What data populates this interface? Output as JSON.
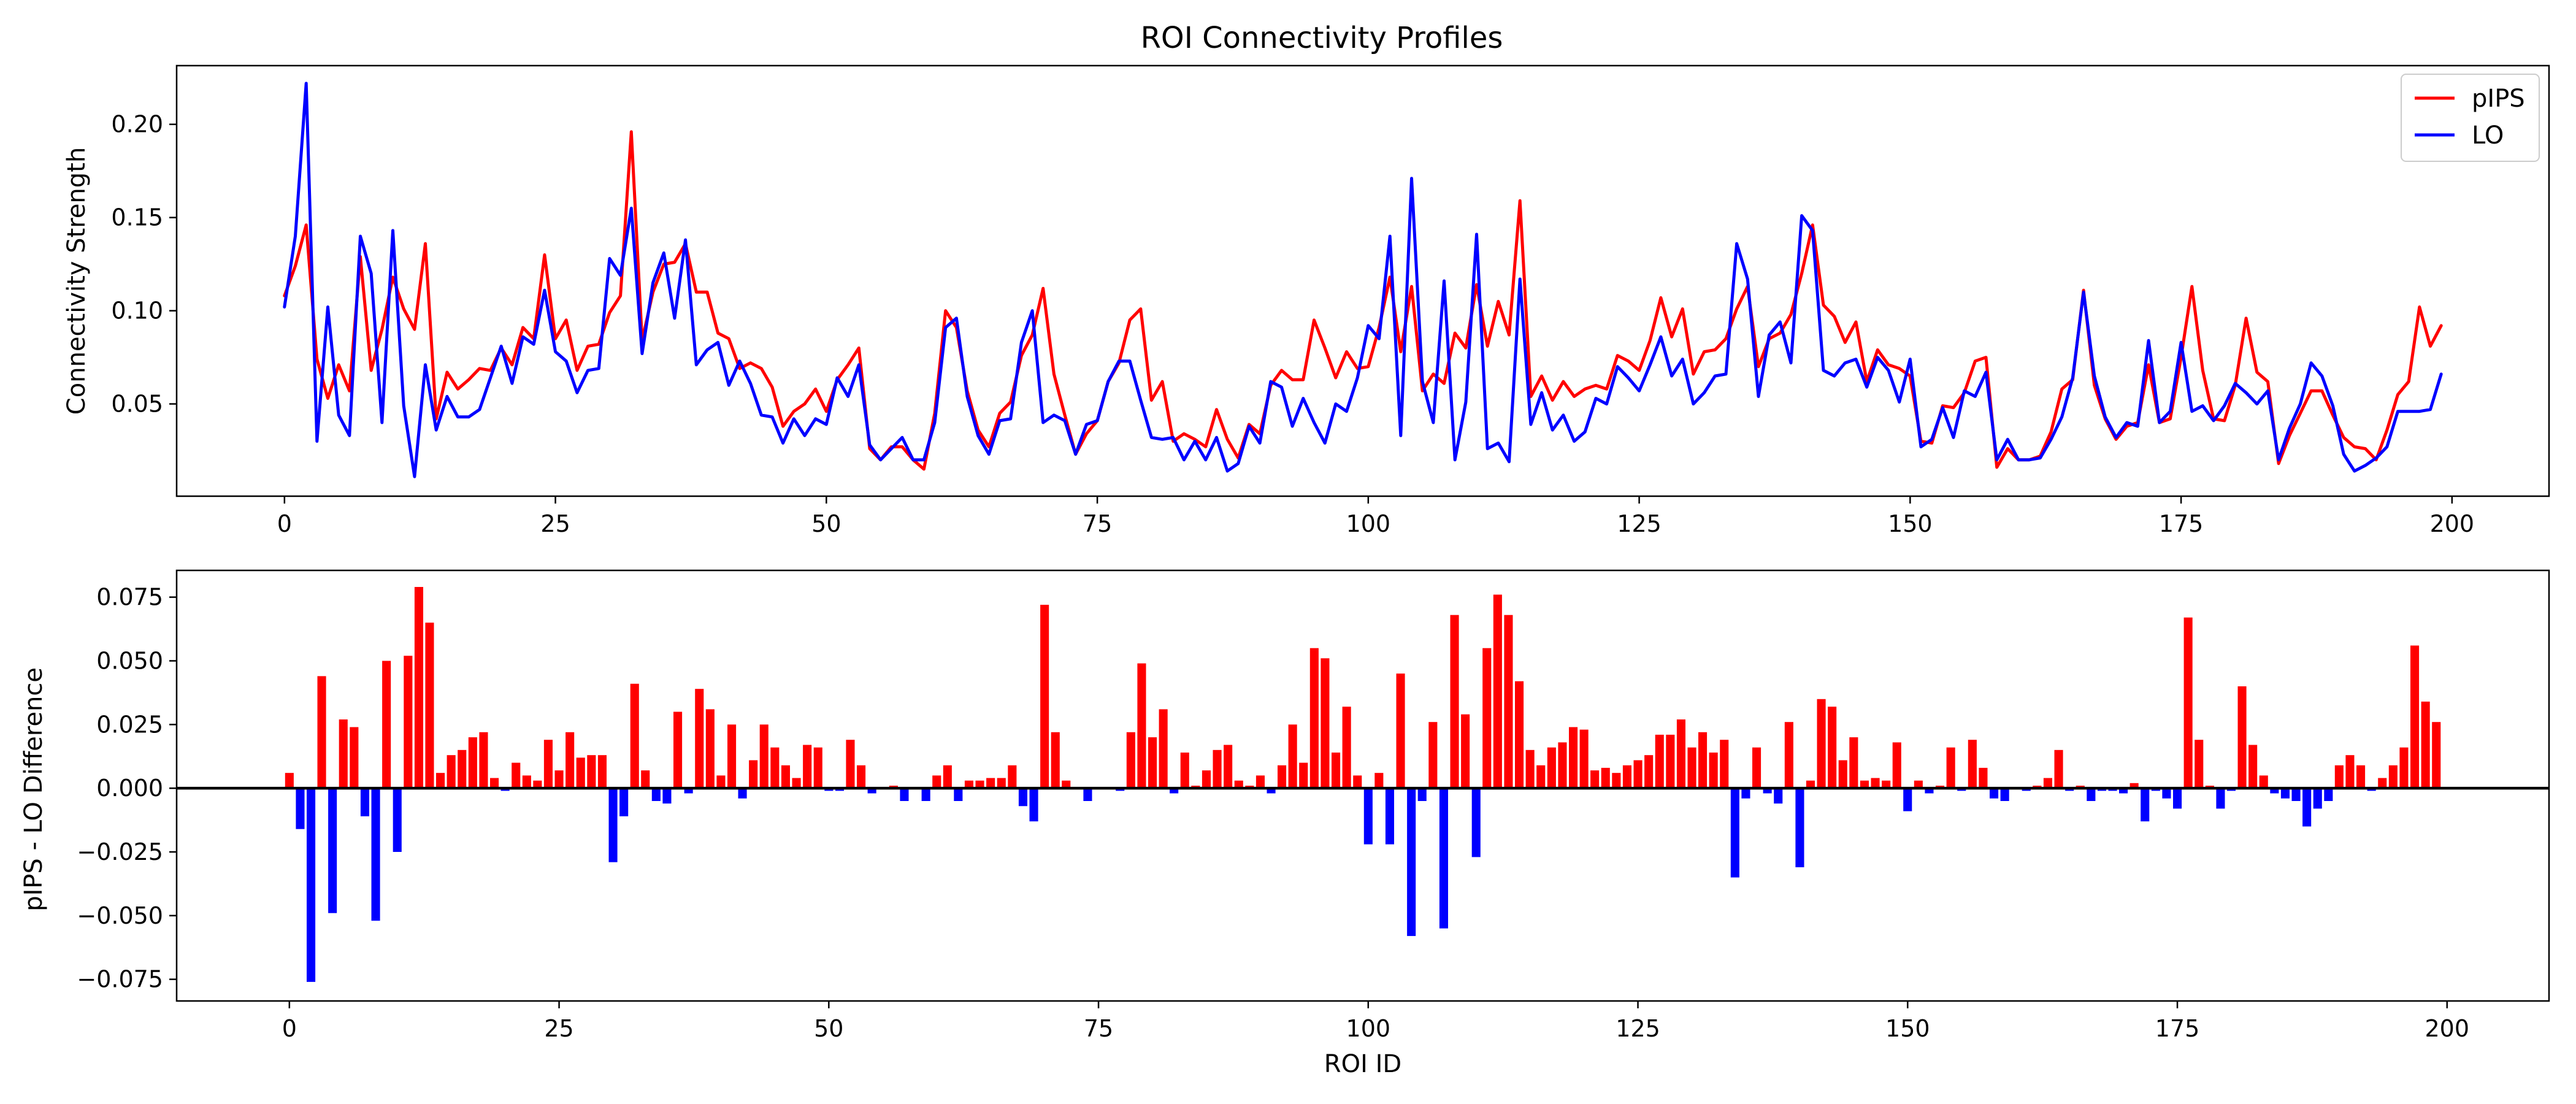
{
  "chart_data": [
    {
      "type": "line",
      "title": "ROI Connectivity Profiles",
      "xlabel": "",
      "ylabel": "Connectivity Strength",
      "xlim": [
        -9.95,
        208.95
      ],
      "ylim": [
        0.0005,
        0.2315
      ],
      "xticks": [
        0,
        25,
        50,
        75,
        100,
        125,
        150,
        175,
        200
      ],
      "yticks": [
        0.05,
        0.1,
        0.15,
        0.2
      ],
      "ytick_labels": [
        "0.05",
        "0.10",
        "0.15",
        "0.20"
      ],
      "grid": false,
      "legend": "top-right",
      "x": "0..199",
      "series": [
        {
          "name": "pIPS",
          "color": "#ff0000",
          "values": [
            0.108,
            0.124,
            0.146,
            0.074,
            0.053,
            0.071,
            0.057,
            0.129,
            0.068,
            0.09,
            0.118,
            0.101,
            0.09,
            0.136,
            0.042,
            0.067,
            0.058,
            0.063,
            0.069,
            0.068,
            0.08,
            0.071,
            0.091,
            0.085,
            0.13,
            0.085,
            0.095,
            0.068,
            0.081,
            0.082,
            0.099,
            0.108,
            0.196,
            0.084,
            0.11,
            0.125,
            0.126,
            0.136,
            0.11,
            0.11,
            0.088,
            0.085,
            0.069,
            0.072,
            0.069,
            0.059,
            0.038,
            0.046,
            0.05,
            0.058,
            0.046,
            0.063,
            0.071,
            0.08,
            0.026,
            0.02,
            0.027,
            0.027,
            0.02,
            0.015,
            0.045,
            0.1,
            0.091,
            0.057,
            0.036,
            0.027,
            0.045,
            0.051,
            0.076,
            0.087,
            0.112,
            0.066,
            0.044,
            0.023,
            0.034,
            0.041,
            0.062,
            0.072,
            0.095,
            0.101,
            0.052,
            0.062,
            0.03,
            0.034,
            0.031,
            0.027,
            0.047,
            0.031,
            0.021,
            0.039,
            0.034,
            0.06,
            0.068,
            0.063,
            0.063,
            0.095,
            0.08,
            0.064,
            0.078,
            0.069,
            0.07,
            0.091,
            0.118,
            0.078,
            0.113,
            0.057,
            0.066,
            0.061,
            0.088,
            0.08,
            0.114,
            0.081,
            0.105,
            0.087,
            0.159,
            0.054,
            0.065,
            0.052,
            0.062,
            0.054,
            0.058,
            0.06,
            0.058,
            0.076,
            0.073,
            0.068,
            0.084,
            0.107,
            0.086,
            0.101,
            0.066,
            0.078,
            0.079,
            0.085,
            0.101,
            0.113,
            0.07,
            0.085,
            0.088,
            0.098,
            0.12,
            0.146,
            0.103,
            0.097,
            0.083,
            0.094,
            0.062,
            0.079,
            0.071,
            0.069,
            0.065,
            0.03,
            0.029,
            0.049,
            0.048,
            0.056,
            0.073,
            0.075,
            0.016,
            0.026,
            0.02,
            0.02,
            0.022,
            0.035,
            0.058,
            0.063,
            0.111,
            0.06,
            0.042,
            0.031,
            0.038,
            0.04,
            0.071,
            0.04,
            0.042,
            0.075,
            0.113,
            0.068,
            0.042,
            0.041,
            0.06,
            0.096,
            0.067,
            0.062,
            0.018,
            0.033,
            0.045,
            0.057,
            0.057,
            0.044,
            0.032,
            0.027,
            0.026,
            0.02,
            0.036,
            0.055,
            0.062,
            0.102,
            0.081,
            0.092
          ]
        },
        {
          "name": "LO",
          "color": "#0000ff",
          "values": [
            0.102,
            0.14,
            0.222,
            0.03,
            0.102,
            0.044,
            0.033,
            0.14,
            0.12,
            0.04,
            0.143,
            0.049,
            0.011,
            0.071,
            0.036,
            0.054,
            0.043,
            0.043,
            0.047,
            0.064,
            0.081,
            0.061,
            0.086,
            0.082,
            0.111,
            0.078,
            0.073,
            0.056,
            0.068,
            0.069,
            0.128,
            0.119,
            0.155,
            0.077,
            0.115,
            0.131,
            0.096,
            0.138,
            0.071,
            0.079,
            0.083,
            0.06,
            0.073,
            0.061,
            0.044,
            0.043,
            0.029,
            0.042,
            0.033,
            0.042,
            0.039,
            0.064,
            0.054,
            0.071,
            0.028,
            0.02,
            0.026,
            0.032,
            0.02,
            0.02,
            0.04,
            0.091,
            0.096,
            0.054,
            0.033,
            0.023,
            0.041,
            0.042,
            0.083,
            0.1,
            0.04,
            0.044,
            0.041,
            0.023,
            0.039,
            0.041,
            0.062,
            0.073,
            0.073,
            0.052,
            0.032,
            0.031,
            0.032,
            0.02,
            0.03,
            0.02,
            0.032,
            0.014,
            0.018,
            0.038,
            0.029,
            0.062,
            0.059,
            0.038,
            0.053,
            0.04,
            0.029,
            0.05,
            0.046,
            0.064,
            0.092,
            0.085,
            0.14,
            0.033,
            0.171,
            0.062,
            0.04,
            0.116,
            0.02,
            0.051,
            0.141,
            0.026,
            0.029,
            0.019,
            0.117,
            0.039,
            0.056,
            0.036,
            0.044,
            0.03,
            0.035,
            0.053,
            0.05,
            0.07,
            0.064,
            0.057,
            0.071,
            0.086,
            0.065,
            0.074,
            0.05,
            0.056,
            0.065,
            0.066,
            0.136,
            0.117,
            0.054,
            0.087,
            0.094,
            0.072,
            0.151,
            0.143,
            0.068,
            0.065,
            0.072,
            0.074,
            0.059,
            0.075,
            0.068,
            0.051,
            0.074,
            0.027,
            0.031,
            0.048,
            0.032,
            0.057,
            0.054,
            0.067,
            0.02,
            0.031,
            0.02,
            0.02,
            0.021,
            0.031,
            0.043,
            0.064,
            0.11,
            0.065,
            0.043,
            0.032,
            0.04,
            0.038,
            0.084,
            0.04,
            0.046,
            0.083,
            0.046,
            0.049,
            0.041,
            0.049,
            0.061,
            0.056,
            0.05,
            0.057,
            0.02,
            0.037,
            0.05,
            0.072,
            0.065,
            0.049,
            0.023,
            0.014,
            0.017,
            0.021,
            0.027,
            0.046,
            0.046,
            0.046,
            0.047,
            0.066
          ]
        }
      ]
    },
    {
      "type": "bar",
      "title": "",
      "xlabel": "ROI ID",
      "ylabel": "pIPS - LO Difference",
      "xlim": [
        -10.45,
        209.45
      ],
      "ylim": [
        -0.0835,
        0.0855
      ],
      "xticks": [
        0,
        25,
        50,
        75,
        100,
        125,
        150,
        175,
        200
      ],
      "yticks": [
        -0.075,
        -0.05,
        -0.025,
        0.0,
        0.025,
        0.05,
        0.075
      ],
      "ytick_labels": [
        "−0.075",
        "−0.050",
        "−0.025",
        "0.000",
        "0.025",
        "0.050",
        "0.075"
      ],
      "grid": false,
      "legend": "none",
      "zero_line": true,
      "x": "0..199",
      "positive_color": "#ff0000",
      "negative_color": "#0000ff",
      "values": [
        0.006,
        -0.016,
        -0.076,
        0.044,
        -0.049,
        0.027,
        0.024,
        -0.011,
        -0.052,
        0.05,
        -0.025,
        0.052,
        0.079,
        0.065,
        0.006,
        0.013,
        0.015,
        0.02,
        0.022,
        0.004,
        -0.001,
        0.01,
        0.005,
        0.003,
        0.019,
        0.007,
        0.022,
        0.012,
        0.013,
        0.013,
        -0.029,
        -0.011,
        0.041,
        0.007,
        -0.005,
        -0.006,
        0.03,
        -0.002,
        0.039,
        0.031,
        0.005,
        0.025,
        -0.004,
        0.011,
        0.025,
        0.016,
        0.009,
        0.004,
        0.017,
        0.016,
        -0.001,
        -0.001,
        0.019,
        0.009,
        -0.002,
        0.0,
        0.001,
        -0.005,
        0.0,
        -0.005,
        0.005,
        0.009,
        -0.005,
        0.003,
        0.003,
        0.004,
        0.004,
        0.009,
        -0.007,
        -0.013,
        0.072,
        0.022,
        0.003,
        0.0,
        -0.005,
        0.0,
        0.0,
        -0.001,
        0.022,
        0.049,
        0.02,
        0.031,
        -0.002,
        0.014,
        0.001,
        0.007,
        0.015,
        0.017,
        0.003,
        0.001,
        0.005,
        -0.002,
        0.009,
        0.025,
        0.01,
        0.055,
        0.051,
        0.014,
        0.032,
        0.005,
        -0.022,
        0.006,
        -0.022,
        0.045,
        -0.058,
        -0.005,
        0.026,
        -0.055,
        0.068,
        0.029,
        -0.027,
        0.055,
        0.076,
        0.068,
        0.042,
        0.015,
        0.009,
        0.016,
        0.018,
        0.024,
        0.023,
        0.007,
        0.008,
        0.006,
        0.009,
        0.011,
        0.013,
        0.021,
        0.021,
        0.027,
        0.016,
        0.022,
        0.014,
        0.019,
        -0.035,
        -0.004,
        0.016,
        -0.002,
        -0.006,
        0.026,
        -0.031,
        0.003,
        0.035,
        0.032,
        0.011,
        0.02,
        0.003,
        0.004,
        0.003,
        0.018,
        -0.009,
        0.003,
        -0.002,
        0.001,
        0.016,
        -0.001,
        0.019,
        0.008,
        -0.004,
        -0.005,
        0.0,
        -0.001,
        0.001,
        0.004,
        0.015,
        -0.001,
        0.001,
        -0.005,
        -0.001,
        -0.001,
        -0.002,
        0.002,
        -0.013,
        -0.001,
        -0.004,
        -0.008,
        0.067,
        0.019,
        0.001,
        -0.008,
        -0.001,
        0.04,
        0.017,
        0.005,
        -0.002,
        -0.004,
        -0.005,
        -0.015,
        -0.008,
        -0.005,
        0.009,
        0.013,
        0.009,
        -0.001,
        0.004,
        0.009,
        0.016,
        0.056,
        0.034,
        0.026
      ]
    }
  ]
}
